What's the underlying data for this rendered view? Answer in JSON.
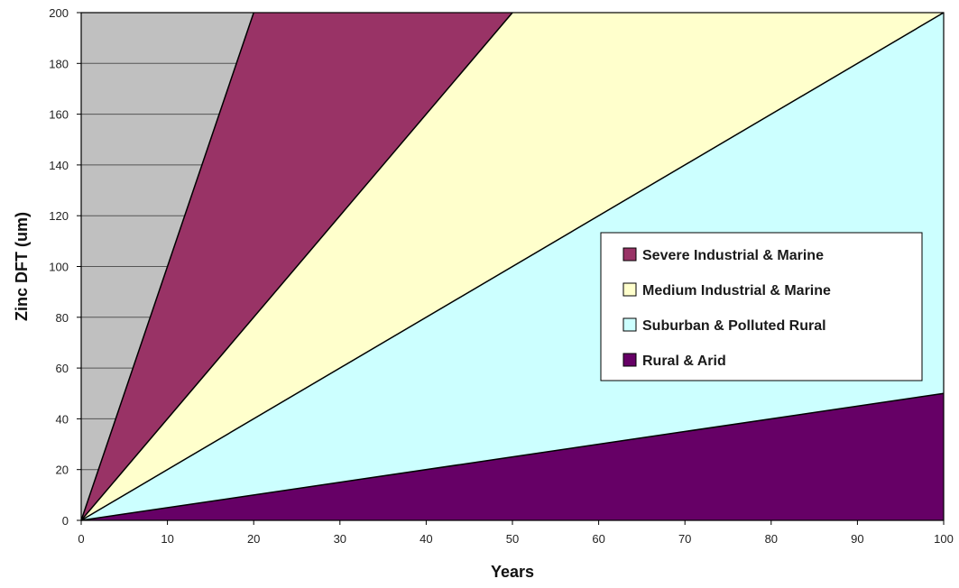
{
  "chart_data": {
    "type": "area",
    "title": "",
    "xlabel": "Years",
    "ylabel": "Zinc DFT (um)",
    "xlim": [
      0,
      100
    ],
    "ylim": [
      0,
      200
    ],
    "xticks": [
      0,
      10,
      20,
      30,
      40,
      50,
      60,
      70,
      80,
      90,
      100
    ],
    "yticks": [
      0,
      20,
      40,
      60,
      80,
      100,
      120,
      140,
      160,
      180,
      200
    ],
    "grid": "horizontal",
    "legend_position": "right",
    "plot_background": "#c0c0c0",
    "series": [
      {
        "name": "Severe Industrial & Marine",
        "color": "#993366",
        "x": [
          0,
          20
        ],
        "y": [
          0,
          200
        ]
      },
      {
        "name": "Medium Industrial & Marine",
        "color": "#ffffcc",
        "x": [
          0,
          50
        ],
        "y": [
          0,
          200
        ]
      },
      {
        "name": "Suburban & Polluted Rural",
        "color": "#ccffff",
        "x": [
          0,
          100
        ],
        "y": [
          0,
          200
        ]
      },
      {
        "name": "Rural & Arid",
        "color": "#660066",
        "x": [
          0,
          100
        ],
        "y": [
          0,
          50
        ]
      }
    ]
  }
}
